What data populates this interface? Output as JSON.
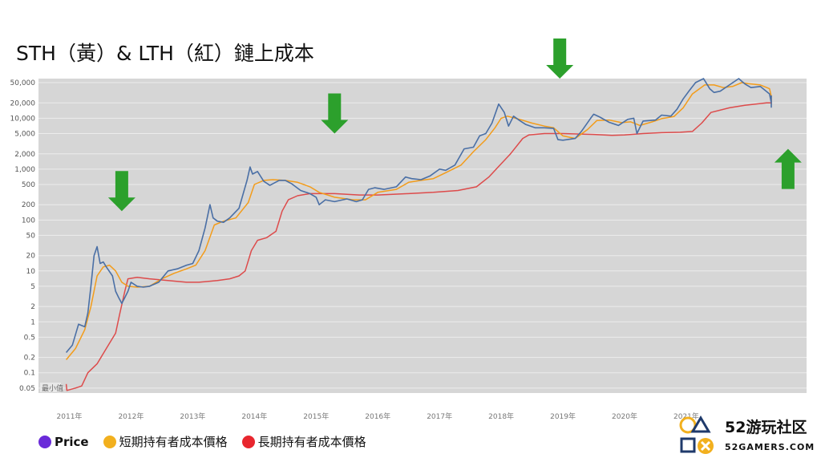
{
  "title": "STH（黃）& LTH（紅）鏈上成本",
  "legend": [
    {
      "label": "Price",
      "color": "#6a2bd9"
    },
    {
      "label": "短期持有者成本價格",
      "color": "#f2b01e"
    },
    {
      "label": "長期持有者成本價格",
      "color": "#e8262e"
    }
  ],
  "watermark": {
    "text": "最小值"
  },
  "brand": {
    "name": "52游玩社区",
    "domain": "52GAMERS.COM"
  },
  "colors": {
    "price": "#4a6fa5",
    "sth": "#f39c1a",
    "lth": "#dd4b4b",
    "arrow": "#2ca02c",
    "plot_bg": "#d6d6d6"
  },
  "chart_data": {
    "type": "line",
    "yscale": "log",
    "title": "STH（黃）& LTH（紅）鏈上成本",
    "xlabel": "",
    "ylabel": "",
    "xlim": [
      2010.5,
      2022.95
    ],
    "ylim": [
      0.04,
      60000
    ],
    "grid": true,
    "y_ticks": [
      {
        "v": 50000,
        "label": "50,000"
      },
      {
        "v": 20000,
        "label": "20,000"
      },
      {
        "v": 10000,
        "label": "10,000"
      },
      {
        "v": 5000,
        "label": "5,000"
      },
      {
        "v": 2000,
        "label": "2,000"
      },
      {
        "v": 1000,
        "label": "1,000"
      },
      {
        "v": 500,
        "label": "500"
      },
      {
        "v": 200,
        "label": "200"
      },
      {
        "v": 100,
        "label": "100"
      },
      {
        "v": 50,
        "label": "50"
      },
      {
        "v": 20,
        "label": "20"
      },
      {
        "v": 10,
        "label": "10"
      },
      {
        "v": 5,
        "label": "5"
      },
      {
        "v": 2,
        "label": "2"
      },
      {
        "v": 1,
        "label": "1"
      },
      {
        "v": 0.5,
        "label": "0.5"
      },
      {
        "v": 0.2,
        "label": "0.2"
      },
      {
        "v": 0.1,
        "label": "0.1"
      },
      {
        "v": 0.05,
        "label": "0.05"
      }
    ],
    "x_ticks": [
      {
        "v": 2011,
        "label": "2011年"
      },
      {
        "v": 2012,
        "label": "2012年"
      },
      {
        "v": 2013,
        "label": "2013年"
      },
      {
        "v": 2014,
        "label": "2014年"
      },
      {
        "v": 2015,
        "label": "2015年"
      },
      {
        "v": 2016,
        "label": "2016年"
      },
      {
        "v": 2017,
        "label": "2017年"
      },
      {
        "v": 2018,
        "label": "2018年"
      },
      {
        "v": 2019,
        "label": "2019年"
      },
      {
        "v": 2020,
        "label": "2020年"
      },
      {
        "v": 2021,
        "label": "2021年"
      }
    ],
    "series": [
      {
        "name": "Price",
        "key": "price",
        "points": [
          [
            2010.95,
            0.25
          ],
          [
            2011.05,
            0.35
          ],
          [
            2011.15,
            0.9
          ],
          [
            2011.25,
            0.8
          ],
          [
            2011.3,
            1.5
          ],
          [
            2011.35,
            5
          ],
          [
            2011.4,
            20
          ],
          [
            2011.45,
            30
          ],
          [
            2011.5,
            14
          ],
          [
            2011.55,
            15
          ],
          [
            2011.6,
            12
          ],
          [
            2011.7,
            8
          ],
          [
            2011.75,
            4
          ],
          [
            2011.8,
            3
          ],
          [
            2011.85,
            2.3
          ],
          [
            2011.9,
            3
          ],
          [
            2011.95,
            4
          ],
          [
            2012.0,
            6
          ],
          [
            2012.1,
            5
          ],
          [
            2012.2,
            4.8
          ],
          [
            2012.3,
            5
          ],
          [
            2012.45,
            6
          ],
          [
            2012.6,
            10
          ],
          [
            2012.75,
            11
          ],
          [
            2012.9,
            13
          ],
          [
            2013.0,
            14
          ],
          [
            2013.1,
            25
          ],
          [
            2013.2,
            70
          ],
          [
            2013.28,
            200
          ],
          [
            2013.33,
            110
          ],
          [
            2013.4,
            95
          ],
          [
            2013.5,
            90
          ],
          [
            2013.6,
            110
          ],
          [
            2013.75,
            170
          ],
          [
            2013.88,
            600
          ],
          [
            2013.93,
            1100
          ],
          [
            2013.97,
            800
          ],
          [
            2014.05,
            900
          ],
          [
            2014.15,
            580
          ],
          [
            2014.25,
            480
          ],
          [
            2014.4,
            600
          ],
          [
            2014.5,
            600
          ],
          [
            2014.6,
            520
          ],
          [
            2014.75,
            380
          ],
          [
            2014.9,
            330
          ],
          [
            2015.0,
            280
          ],
          [
            2015.05,
            200
          ],
          [
            2015.15,
            250
          ],
          [
            2015.3,
            230
          ],
          [
            2015.5,
            260
          ],
          [
            2015.65,
            230
          ],
          [
            2015.75,
            250
          ],
          [
            2015.85,
            400
          ],
          [
            2015.95,
            430
          ],
          [
            2016.1,
            400
          ],
          [
            2016.3,
            450
          ],
          [
            2016.45,
            700
          ],
          [
            2016.55,
            650
          ],
          [
            2016.7,
            620
          ],
          [
            2016.85,
            740
          ],
          [
            2017.0,
            1000
          ],
          [
            2017.1,
            950
          ],
          [
            2017.25,
            1200
          ],
          [
            2017.4,
            2500
          ],
          [
            2017.55,
            2700
          ],
          [
            2017.65,
            4500
          ],
          [
            2017.75,
            5000
          ],
          [
            2017.85,
            8000
          ],
          [
            2017.96,
            19000
          ],
          [
            2018.05,
            13000
          ],
          [
            2018.12,
            7000
          ],
          [
            2018.2,
            11000
          ],
          [
            2018.3,
            9000
          ],
          [
            2018.4,
            7500
          ],
          [
            2018.55,
            6500
          ],
          [
            2018.7,
            6500
          ],
          [
            2018.85,
            6300
          ],
          [
            2018.92,
            3800
          ],
          [
            2019.0,
            3700
          ],
          [
            2019.2,
            4000
          ],
          [
            2019.3,
            5500
          ],
          [
            2019.45,
            10000
          ],
          [
            2019.5,
            12000
          ],
          [
            2019.6,
            10500
          ],
          [
            2019.75,
            8300
          ],
          [
            2019.9,
            7200
          ],
          [
            2020.05,
            9500
          ],
          [
            2020.15,
            10000
          ],
          [
            2020.2,
            5000
          ],
          [
            2020.3,
            8800
          ],
          [
            2020.5,
            9200
          ],
          [
            2020.6,
            11500
          ],
          [
            2020.75,
            11000
          ],
          [
            2020.85,
            15000
          ],
          [
            2020.95,
            24000
          ],
          [
            2021.05,
            35000
          ],
          [
            2021.15,
            50000
          ],
          [
            2021.28,
            60000
          ],
          [
            2021.38,
            38000
          ],
          [
            2021.45,
            32000
          ],
          [
            2021.55,
            34000
          ],
          [
            2021.7,
            45000
          ],
          [
            2021.85,
            60000
          ],
          [
            2021.95,
            47000
          ],
          [
            2022.05,
            40000
          ],
          [
            2022.2,
            42000
          ],
          [
            2022.35,
            30000
          ],
          [
            2022.45,
            20000
          ],
          [
            2022.6,
            22000
          ],
          [
            2022.75,
            19500
          ],
          [
            2022.85,
            16500
          ],
          [
            2022.95,
            22000
          ],
          [
            2023.1,
            23000
          ],
          [
            2023.2,
            28000
          ]
        ]
      },
      {
        "name": "短期持有者成本價格",
        "key": "sth",
        "points": [
          [
            2010.95,
            0.18
          ],
          [
            2011.1,
            0.3
          ],
          [
            2011.25,
            0.7
          ],
          [
            2011.35,
            2
          ],
          [
            2011.45,
            8
          ],
          [
            2011.55,
            12
          ],
          [
            2011.65,
            13
          ],
          [
            2011.75,
            10
          ],
          [
            2011.85,
            6
          ],
          [
            2011.95,
            5
          ],
          [
            2012.1,
            4.8
          ],
          [
            2012.3,
            5
          ],
          [
            2012.5,
            7
          ],
          [
            2012.7,
            9
          ],
          [
            2012.9,
            11
          ],
          [
            2013.05,
            13
          ],
          [
            2013.2,
            25
          ],
          [
            2013.35,
            80
          ],
          [
            2013.5,
            95
          ],
          [
            2013.7,
            110
          ],
          [
            2013.9,
            220
          ],
          [
            2014.0,
            500
          ],
          [
            2014.15,
            600
          ],
          [
            2014.3,
            620
          ],
          [
            2014.5,
            600
          ],
          [
            2014.7,
            550
          ],
          [
            2014.9,
            450
          ],
          [
            2015.05,
            350
          ],
          [
            2015.3,
            280
          ],
          [
            2015.6,
            250
          ],
          [
            2015.8,
            250
          ],
          [
            2016.0,
            350
          ],
          [
            2016.3,
            400
          ],
          [
            2016.5,
            550
          ],
          [
            2016.7,
            600
          ],
          [
            2016.9,
            650
          ],
          [
            2017.1,
            850
          ],
          [
            2017.35,
            1200
          ],
          [
            2017.55,
            2200
          ],
          [
            2017.75,
            3800
          ],
          [
            2017.9,
            6500
          ],
          [
            2018.0,
            10000
          ],
          [
            2018.1,
            11000
          ],
          [
            2018.3,
            9500
          ],
          [
            2018.5,
            8000
          ],
          [
            2018.7,
            7000
          ],
          [
            2018.85,
            6500
          ],
          [
            2019.0,
            4500
          ],
          [
            2019.2,
            4000
          ],
          [
            2019.4,
            6000
          ],
          [
            2019.55,
            9000
          ],
          [
            2019.75,
            9200
          ],
          [
            2019.95,
            8200
          ],
          [
            2020.1,
            8500
          ],
          [
            2020.25,
            7200
          ],
          [
            2020.45,
            8500
          ],
          [
            2020.6,
            9800
          ],
          [
            2020.8,
            10800
          ],
          [
            2020.95,
            16000
          ],
          [
            2021.1,
            30000
          ],
          [
            2021.3,
            45000
          ],
          [
            2021.45,
            45000
          ],
          [
            2021.6,
            40000
          ],
          [
            2021.75,
            42000
          ],
          [
            2021.9,
            50000
          ],
          [
            2022.0,
            48000
          ],
          [
            2022.2,
            45000
          ],
          [
            2022.35,
            38000
          ],
          [
            2022.5,
            27000
          ],
          [
            2022.7,
            22000
          ],
          [
            2022.85,
            20000
          ],
          [
            2023.0,
            19000
          ],
          [
            2023.2,
            21000
          ]
        ]
      },
      {
        "name": "長期持有者成本價格",
        "key": "lth",
        "points": [
          [
            2010.95,
            0.06
          ],
          [
            2010.96,
            0.045
          ],
          [
            2011.1,
            0.05
          ],
          [
            2011.2,
            0.055
          ],
          [
            2011.3,
            0.1
          ],
          [
            2011.45,
            0.15
          ],
          [
            2011.6,
            0.3
          ],
          [
            2011.75,
            0.6
          ],
          [
            2011.82,
            1.5
          ],
          [
            2011.9,
            4
          ],
          [
            2011.95,
            7
          ],
          [
            2012.1,
            7.5
          ],
          [
            2012.3,
            7
          ],
          [
            2012.6,
            6.5
          ],
          [
            2012.9,
            6
          ],
          [
            2013.1,
            6
          ],
          [
            2013.4,
            6.5
          ],
          [
            2013.6,
            7
          ],
          [
            2013.75,
            8
          ],
          [
            2013.85,
            10
          ],
          [
            2013.95,
            25
          ],
          [
            2014.05,
            40
          ],
          [
            2014.2,
            45
          ],
          [
            2014.35,
            60
          ],
          [
            2014.45,
            150
          ],
          [
            2014.55,
            250
          ],
          [
            2014.7,
            300
          ],
          [
            2014.9,
            330
          ],
          [
            2015.3,
            330
          ],
          [
            2015.7,
            310
          ],
          [
            2016.0,
            310
          ],
          [
            2016.5,
            330
          ],
          [
            2016.9,
            350
          ],
          [
            2017.3,
            380
          ],
          [
            2017.6,
            450
          ],
          [
            2017.8,
            700
          ],
          [
            2017.95,
            1100
          ],
          [
            2018.15,
            2000
          ],
          [
            2018.35,
            4000
          ],
          [
            2018.45,
            4700
          ],
          [
            2018.7,
            5000
          ],
          [
            2019.0,
            5000
          ],
          [
            2019.5,
            4800
          ],
          [
            2019.8,
            4600
          ],
          [
            2020.0,
            4700
          ],
          [
            2020.3,
            5000
          ],
          [
            2020.6,
            5200
          ],
          [
            2020.9,
            5300
          ],
          [
            2021.1,
            5500
          ],
          [
            2021.25,
            8000
          ],
          [
            2021.4,
            13000
          ],
          [
            2021.7,
            16000
          ],
          [
            2021.95,
            18000
          ],
          [
            2022.3,
            20000
          ],
          [
            2022.7,
            20000
          ],
          [
            2023.0,
            20000
          ],
          [
            2023.2,
            20500
          ]
        ]
      }
    ],
    "annotations": [
      {
        "type": "arrow_down",
        "x": 2011.85,
        "y": 150
      },
      {
        "type": "arrow_down",
        "x": 2015.3,
        "y": 5000
      },
      {
        "type": "arrow_down",
        "x": 2018.95,
        "y": 60000
      },
      {
        "type": "arrow_up",
        "x": 2022.65,
        "y": 2500
      }
    ]
  }
}
